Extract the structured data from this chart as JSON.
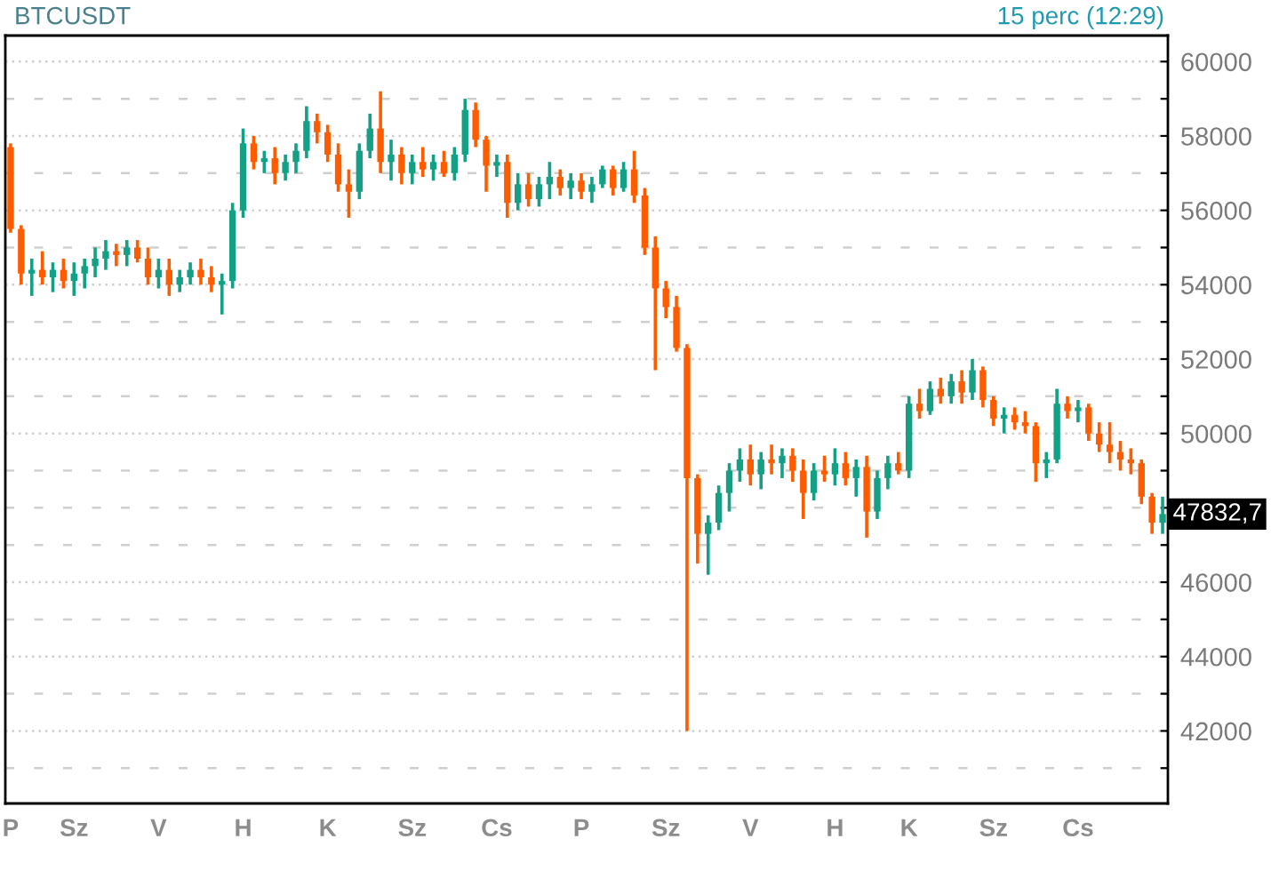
{
  "chart_data": {
    "type": "candlestick",
    "title": "BTCUSDT",
    "subtitle": "15 perc (12:29)",
    "categories": [
      "P",
      null,
      null,
      null,
      null,
      null,
      "Sz",
      null,
      null,
      null,
      null,
      null,
      null,
      null,
      "V",
      null,
      null,
      null,
      null,
      null,
      null,
      null,
      "H",
      null,
      null,
      null,
      null,
      null,
      null,
      null,
      "K",
      null,
      null,
      null,
      null,
      null,
      null,
      null,
      "Sz",
      null,
      null,
      null,
      null,
      null,
      null,
      null,
      "Cs",
      null,
      null,
      null,
      null,
      null,
      null,
      null,
      "P",
      null,
      null,
      null,
      null,
      null,
      null,
      null,
      "Sz",
      null,
      null,
      null,
      null,
      null,
      null,
      null,
      "V",
      null,
      null,
      null,
      null,
      null,
      null,
      null,
      "H",
      null,
      null,
      null,
      null,
      null,
      null,
      "K",
      null,
      null,
      null,
      null,
      null,
      null,
      null,
      "Sz",
      null,
      null,
      null,
      null,
      null,
      null,
      null,
      "Cs",
      null,
      null,
      null,
      null,
      null,
      null,
      null,
      null
    ],
    "ohlc": [
      [
        57700,
        57800,
        55400,
        55500
      ],
      [
        55500,
        55600,
        54000,
        54300
      ],
      [
        54300,
        54700,
        53700,
        54400
      ],
      [
        54400,
        54900,
        54000,
        54200
      ],
      [
        54200,
        54600,
        53800,
        54400
      ],
      [
        54400,
        54700,
        53900,
        54100
      ],
      [
        54100,
        54600,
        53700,
        54300
      ],
      [
        54300,
        54700,
        53900,
        54500
      ],
      [
        54500,
        55000,
        54200,
        54700
      ],
      [
        54700,
        55200,
        54400,
        54900
      ],
      [
        54900,
        55100,
        54500,
        54800
      ],
      [
        54800,
        55200,
        54500,
        55000
      ],
      [
        55000,
        55200,
        54600,
        54700
      ],
      [
        54700,
        55000,
        54000,
        54200
      ],
      [
        54200,
        54700,
        53900,
        54400
      ],
      [
        54400,
        54700,
        53700,
        54000
      ],
      [
        54000,
        54400,
        53800,
        54200
      ],
      [
        54200,
        54600,
        54000,
        54400
      ],
      [
        54400,
        54700,
        54000,
        54200
      ],
      [
        54200,
        54500,
        53800,
        54000
      ],
      [
        54000,
        54300,
        53200,
        54100
      ],
      [
        54100,
        56200,
        53900,
        56000
      ],
      [
        56000,
        58200,
        55800,
        57800
      ],
      [
        57800,
        58000,
        57100,
        57300
      ],
      [
        57300,
        57600,
        57000,
        57400
      ],
      [
        57400,
        57700,
        56700,
        57000
      ],
      [
        57000,
        57500,
        56800,
        57300
      ],
      [
        57300,
        57800,
        57000,
        57600
      ],
      [
        57600,
        58800,
        57400,
        58400
      ],
      [
        58400,
        58600,
        57800,
        58100
      ],
      [
        58100,
        58300,
        57300,
        57500
      ],
      [
        57500,
        57800,
        56500,
        56700
      ],
      [
        56700,
        57100,
        55800,
        56500
      ],
      [
        56500,
        57800,
        56300,
        57600
      ],
      [
        57600,
        58600,
        57400,
        58200
      ],
      [
        58200,
        59200,
        57000,
        57300
      ],
      [
        57300,
        57900,
        56800,
        57500
      ],
      [
        57500,
        57700,
        56700,
        57000
      ],
      [
        57000,
        57500,
        56700,
        57300
      ],
      [
        57300,
        57700,
        56900,
        57100
      ],
      [
        57100,
        57500,
        56800,
        57300
      ],
      [
        57300,
        57600,
        56900,
        57000
      ],
      [
        57000,
        57700,
        56800,
        57500
      ],
      [
        57500,
        59000,
        57300,
        58700
      ],
      [
        58700,
        58900,
        57700,
        57900
      ],
      [
        57900,
        58000,
        56500,
        57200
      ],
      [
        57200,
        57500,
        56900,
        57300
      ],
      [
        57300,
        57500,
        55800,
        56200
      ],
      [
        56200,
        57000,
        56000,
        56700
      ],
      [
        56700,
        57000,
        56100,
        56300
      ],
      [
        56300,
        56900,
        56100,
        56700
      ],
      [
        56700,
        57300,
        56300,
        56900
      ],
      [
        56900,
        57100,
        56400,
        56600
      ],
      [
        56600,
        57000,
        56300,
        56800
      ],
      [
        56800,
        57000,
        56300,
        56500
      ],
      [
        56500,
        56900,
        56200,
        56700
      ],
      [
        56700,
        57200,
        56600,
        57100
      ],
      [
        57100,
        57200,
        56400,
        56600
      ],
      [
        56600,
        57300,
        56500,
        57100
      ],
      [
        57100,
        57600,
        56200,
        56400
      ],
      [
        56400,
        56600,
        54800,
        55000
      ],
      [
        55000,
        55300,
        51700,
        53900
      ],
      [
        53900,
        54100,
        53100,
        53400
      ],
      [
        53400,
        53700,
        52200,
        52300
      ],
      [
        52300,
        52400,
        42000,
        48800
      ],
      [
        48800,
        48900,
        46500,
        47300
      ],
      [
        47300,
        47800,
        46200,
        47600
      ],
      [
        47600,
        48600,
        47400,
        48400
      ],
      [
        48400,
        49200,
        47900,
        49000
      ],
      [
        49000,
        49600,
        48700,
        49300
      ],
      [
        49300,
        49700,
        48600,
        48900
      ],
      [
        48900,
        49500,
        48500,
        49300
      ],
      [
        49300,
        49700,
        48900,
        49200
      ],
      [
        49200,
        49600,
        48800,
        49400
      ],
      [
        49400,
        49600,
        48700,
        49000
      ],
      [
        49000,
        49300,
        47700,
        48400
      ],
      [
        48400,
        49200,
        48200,
        49000
      ],
      [
        49000,
        49400,
        48700,
        48900
      ],
      [
        48900,
        49600,
        48600,
        49200
      ],
      [
        49200,
        49500,
        48600,
        48800
      ],
      [
        48800,
        49300,
        48300,
        49100
      ],
      [
        49100,
        49400,
        47200,
        47900
      ],
      [
        47900,
        49000,
        47700,
        48800
      ],
      [
        48800,
        49400,
        48500,
        49200
      ],
      [
        49200,
        49500,
        48900,
        49000
      ],
      [
        49000,
        51000,
        48800,
        50800
      ],
      [
        50800,
        51200,
        50400,
        50600
      ],
      [
        50600,
        51400,
        50500,
        51200
      ],
      [
        51200,
        51500,
        50800,
        51000
      ],
      [
        51000,
        51600,
        50800,
        51400
      ],
      [
        51400,
        51700,
        50800,
        51100
      ],
      [
        51100,
        52000,
        50900,
        51700
      ],
      [
        51700,
        51800,
        50700,
        50900
      ],
      [
        50900,
        51000,
        50200,
        50400
      ],
      [
        50400,
        50700,
        50000,
        50500
      ],
      [
        50500,
        50700,
        50100,
        50300
      ],
      [
        50300,
        50600,
        50000,
        50200
      ],
      [
        50200,
        50300,
        48700,
        49200
      ],
      [
        49200,
        49500,
        48800,
        49300
      ],
      [
        49300,
        51200,
        49200,
        50800
      ],
      [
        50800,
        51000,
        50400,
        50600
      ],
      [
        50600,
        50900,
        50300,
        50700
      ],
      [
        50700,
        50800,
        49800,
        50000
      ],
      [
        50000,
        50300,
        49500,
        49700
      ],
      [
        49700,
        50300,
        49200,
        49500
      ],
      [
        49500,
        49800,
        49000,
        49300
      ],
      [
        49300,
        49600,
        48900,
        49200
      ],
      [
        49200,
        49300,
        48100,
        48300
      ],
      [
        48300,
        48400,
        47300,
        47600
      ],
      [
        47600,
        48300,
        47300,
        47832.7
      ]
    ],
    "colors": [
      "#ff5c00",
      "#ff5c00",
      "#13a085",
      "#ff5c00",
      "#13a085",
      "#ff5c00",
      "#13a085",
      "#13a085",
      "#13a085",
      "#13a085",
      "#ff5c00",
      "#13a085",
      "#ff5c00",
      "#ff5c00",
      "#13a085",
      "#ff5c00",
      "#13a085",
      "#13a085",
      "#ff5c00",
      "#ff5c00",
      "#13a085",
      "#13a085",
      "#13a085",
      "#ff5c00",
      "#13a085",
      "#ff5c00",
      "#13a085",
      "#13a085",
      "#13a085",
      "#ff5c00",
      "#ff5c00",
      "#ff5c00",
      "#ff5c00",
      "#13a085",
      "#13a085",
      "#ff5c00",
      "#13a085",
      "#ff5c00",
      "#13a085",
      "#ff5c00",
      "#13a085",
      "#ff5c00",
      "#13a085",
      "#13a085",
      "#ff5c00",
      "#ff5c00",
      "#13a085",
      "#ff5c00",
      "#13a085",
      "#ff5c00",
      "#13a085",
      "#13a085",
      "#ff5c00",
      "#13a085",
      "#ff5c00",
      "#13a085",
      "#13a085",
      "#ff5c00",
      "#13a085",
      "#ff5c00",
      "#ff5c00",
      "#ff5c00",
      "#ff5c00",
      "#ff5c00",
      "#ff5c00",
      "#ff5c00",
      "#13a085",
      "#13a085",
      "#13a085",
      "#13a085",
      "#ff5c00",
      "#13a085",
      "#ff5c00",
      "#13a085",
      "#ff5c00",
      "#ff5c00",
      "#13a085",
      "#ff5c00",
      "#13a085",
      "#ff5c00",
      "#13a085",
      "#ff5c00",
      "#13a085",
      "#13a085",
      "#ff5c00",
      "#13a085",
      "#ff5c00",
      "#13a085",
      "#ff5c00",
      "#13a085",
      "#ff5c00",
      "#13a085",
      "#ff5c00",
      "#ff5c00",
      "#13a085",
      "#ff5c00",
      "#ff5c00",
      "#ff5c00",
      "#13a085",
      "#13a085",
      "#ff5c00",
      "#13a085",
      "#ff5c00",
      "#ff5c00",
      "#ff5c00",
      "#ff5c00",
      "#ff5c00",
      "#ff5c00",
      "#ff5c00",
      "#13a085"
    ],
    "ylim": [
      40050,
      60700
    ],
    "yticks": [
      {
        "value": 41000,
        "label": null
      },
      42000,
      {
        "value": 43000,
        "label": null
      },
      44000,
      {
        "value": 45000,
        "label": null
      },
      46000,
      {
        "value": 47000,
        "label": null
      },
      {
        "value": 48000,
        "label": null
      },
      {
        "value": 49000,
        "label": null
      },
      50000,
      {
        "value": 51000,
        "label": null
      },
      52000,
      {
        "value": 53000,
        "label": null
      },
      54000,
      {
        "value": 55000,
        "label": null
      },
      56000,
      {
        "value": 57000,
        "label": null
      },
      58000,
      {
        "value": 59000,
        "label": null
      },
      60000
    ],
    "grid": "y",
    "annotations": [
      "47832,7"
    ]
  }
}
